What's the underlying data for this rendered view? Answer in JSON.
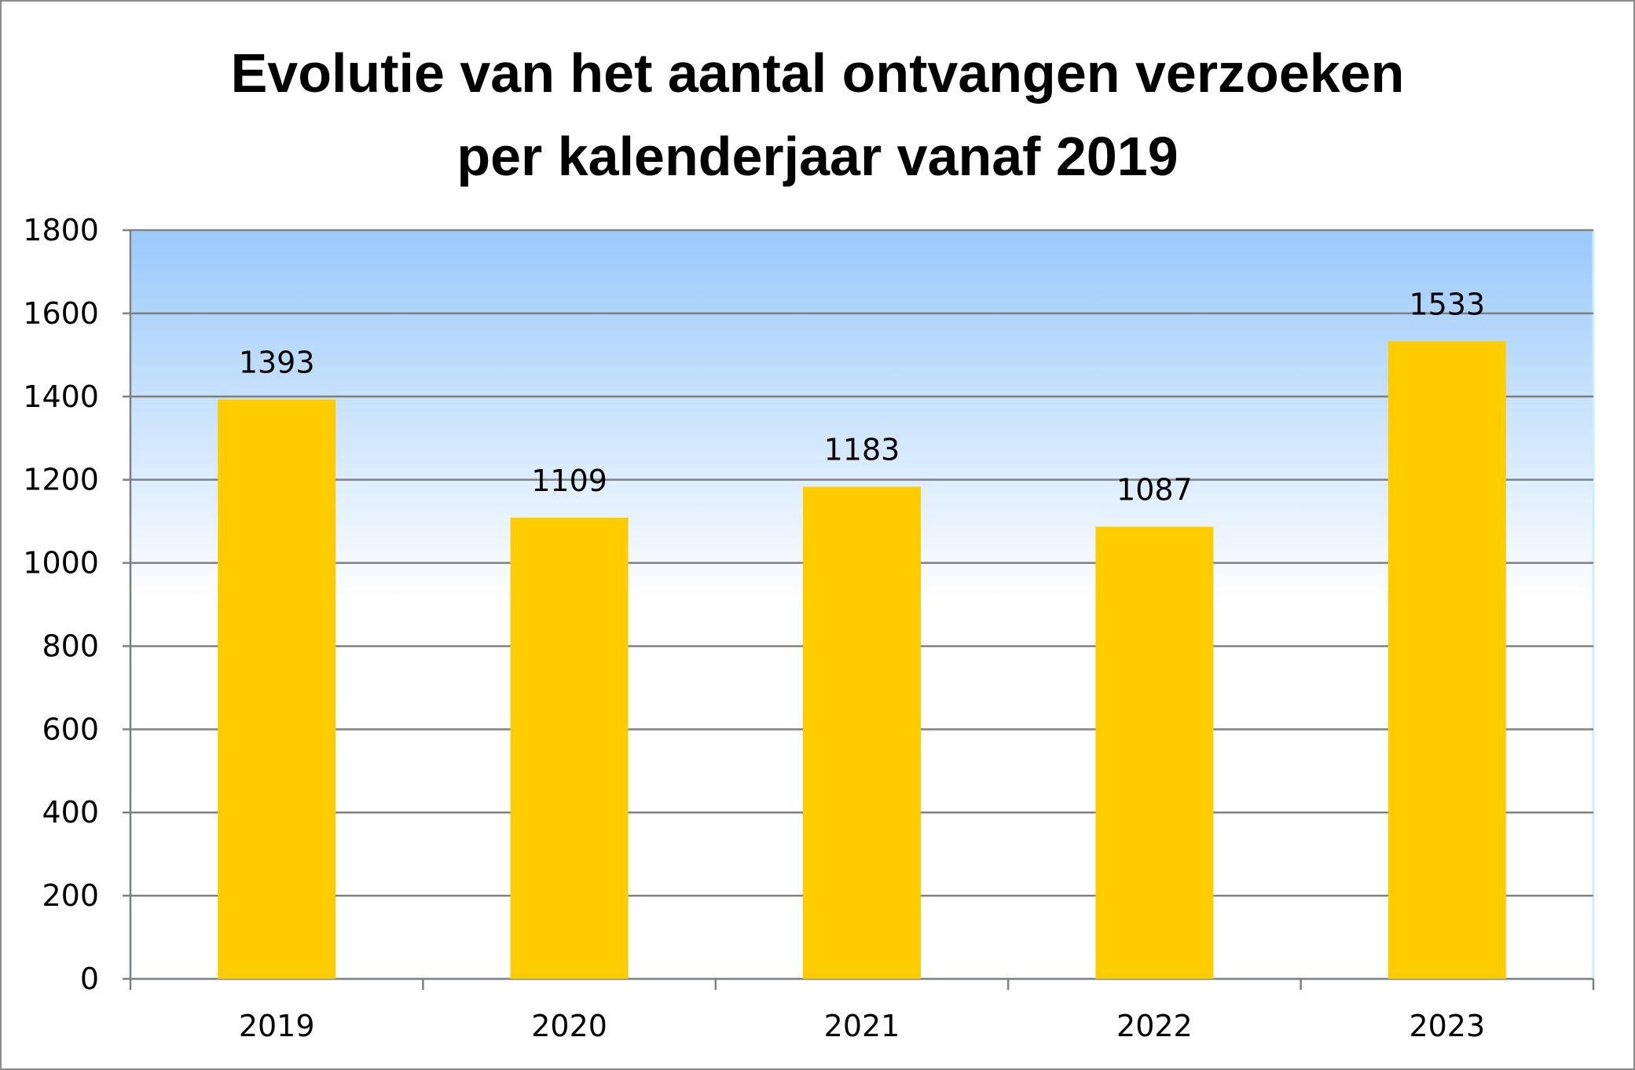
{
  "chart_data": {
    "type": "bar",
    "title": [
      "Evolutie van het aantal ontvangen verzoeken",
      "per kalenderjaar vanaf 2019"
    ],
    "categories": [
      "2019",
      "2020",
      "2021",
      "2022",
      "2023"
    ],
    "values": [
      1393,
      1109,
      1183,
      1087,
      1533
    ],
    "data_labels": [
      "1393",
      "1109",
      "1183",
      "1087",
      "1533"
    ],
    "ylim": [
      0,
      1800
    ],
    "y_ticks": [
      0,
      200,
      400,
      600,
      800,
      1000,
      1200,
      1400,
      1600,
      1800
    ],
    "xlabel": "",
    "ylabel": "",
    "grid": true,
    "legend": "none",
    "colors": {
      "bar": "#ffcc00",
      "plot_bg_top": "#99c9fb",
      "plot_bg_bottom": "#ffffff",
      "gridline": "#808080",
      "plot_border": "#c8f0f8"
    }
  }
}
